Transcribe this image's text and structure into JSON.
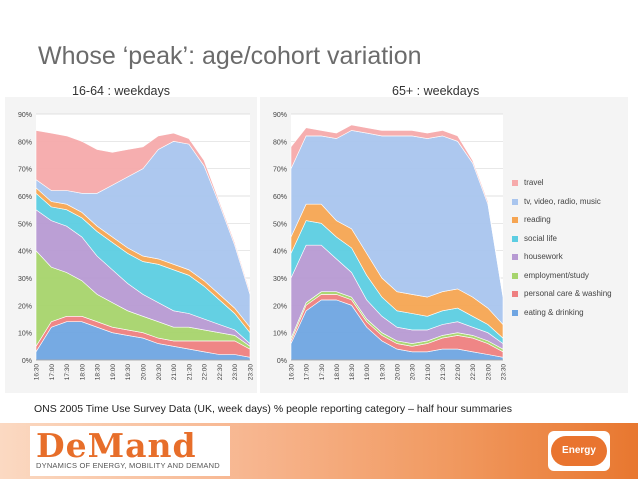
{
  "slide": {
    "title": "Whose ‘peak’: age/cohort variation",
    "footnote": "ONS 2005 Time Use Survey Data (UK, week days) % people reporting category – half hour summaries",
    "logo": {
      "word": "DeMand",
      "tagline": "DYNAMICS OF ENERGY, MOBILITY AND DEMAND"
    },
    "badge": {
      "text": "Energy"
    }
  },
  "colors": {
    "travel": "#f6aaab",
    "tv": "#a9c5ee",
    "reading": "#f6a552",
    "social": "#5ccde2",
    "housework": "#b79ad3",
    "employment": "#a6d46c",
    "personal": "#ee7f80",
    "eating": "#6fa5e2"
  },
  "chart_data": [
    {
      "type": "area",
      "title": "16-64 : weekdays",
      "x": [
        "16:30",
        "17:00",
        "17:30",
        "18:00",
        "18:30",
        "19:00",
        "19:30",
        "20:00",
        "20:30",
        "21:00",
        "21:30",
        "22:00",
        "22:30",
        "23:00",
        "23:30"
      ],
      "ylim": [
        0,
        90
      ],
      "yticks": [
        "0%",
        "10%",
        "20%",
        "30%",
        "40%",
        "50%",
        "60%",
        "70%",
        "80%",
        "90%"
      ],
      "stacked": true,
      "series": [
        {
          "name": "eating & drinking",
          "color_key": "eating",
          "values": [
            3,
            12,
            14,
            14,
            12,
            10,
            9,
            8,
            6,
            5,
            4,
            3,
            2,
            2,
            1
          ]
        },
        {
          "name": "personal care & washing",
          "color_key": "personal",
          "values": [
            2,
            2,
            2,
            2,
            2,
            2,
            2,
            2,
            2,
            2,
            3,
            4,
            5,
            5,
            3
          ]
        },
        {
          "name": "employment/study",
          "color_key": "employment",
          "values": [
            35,
            20,
            16,
            13,
            10,
            9,
            7,
            6,
            6,
            5,
            5,
            4,
            3,
            2,
            1
          ]
        },
        {
          "name": "housework",
          "color_key": "housework",
          "values": [
            15,
            17,
            17,
            16,
            14,
            12,
            10,
            8,
            7,
            6,
            5,
            4,
            3,
            2,
            1
          ]
        },
        {
          "name": "social life",
          "color_key": "social",
          "values": [
            6,
            5,
            6,
            7,
            9,
            10,
            11,
            12,
            14,
            15,
            14,
            12,
            9,
            6,
            4
          ]
        },
        {
          "name": "reading",
          "color_key": "reading",
          "values": [
            2,
            2,
            2,
            2,
            2,
            2,
            2,
            2,
            2,
            2,
            2,
            2,
            2,
            2,
            2
          ]
        },
        {
          "name": "tv, video, radio, music",
          "color_key": "tv",
          "values": [
            3,
            4,
            5,
            7,
            12,
            19,
            26,
            32,
            40,
            45,
            46,
            42,
            33,
            23,
            12
          ]
        },
        {
          "name": "travel",
          "color_key": "travel",
          "values": [
            18,
            21,
            20,
            19,
            16,
            12,
            10,
            8,
            5,
            3,
            2,
            2,
            1,
            1,
            1
          ]
        }
      ]
    },
    {
      "type": "area",
      "title": "65+ : weekdays",
      "x": [
        "16:30",
        "17:00",
        "17:30",
        "18:00",
        "18:30",
        "19:00",
        "19:30",
        "20:00",
        "20:30",
        "21:00",
        "21:30",
        "22:00",
        "22:30",
        "23:00",
        "23:30"
      ],
      "ylim": [
        0,
        90
      ],
      "yticks": [
        "0%",
        "10%",
        "20%",
        "30%",
        "40%",
        "50%",
        "60%",
        "70%",
        "80%",
        "90%"
      ],
      "stacked": true,
      "series": [
        {
          "name": "eating & drinking",
          "color_key": "eating",
          "values": [
            6,
            18,
            22,
            22,
            20,
            12,
            7,
            4,
            3,
            3,
            4,
            4,
            3,
            2,
            1
          ]
        },
        {
          "name": "personal care & washing",
          "color_key": "personal",
          "values": [
            1,
            2,
            2,
            2,
            2,
            2,
            2,
            2,
            2,
            3,
            4,
            5,
            5,
            4,
            2
          ]
        },
        {
          "name": "employment/study",
          "color_key": "employment",
          "values": [
            1,
            1,
            1,
            1,
            1,
            1,
            1,
            1,
            1,
            1,
            1,
            1,
            1,
            1,
            1
          ]
        },
        {
          "name": "housework",
          "color_key": "housework",
          "values": [
            22,
            21,
            17,
            12,
            9,
            7,
            6,
            5,
            5,
            4,
            4,
            4,
            3,
            3,
            2
          ]
        },
        {
          "name": "social life",
          "color_key": "social",
          "values": [
            9,
            9,
            8,
            8,
            9,
            9,
            7,
            6,
            6,
            5,
            5,
            5,
            4,
            3,
            2
          ]
        },
        {
          "name": "reading",
          "color_key": "reading",
          "values": [
            6,
            6,
            7,
            6,
            7,
            8,
            7,
            7,
            7,
            7,
            7,
            7,
            7,
            6,
            5
          ]
        },
        {
          "name": "tv, video, radio, music",
          "color_key": "tv",
          "values": [
            25,
            25,
            25,
            30,
            36,
            44,
            52,
            57,
            58,
            58,
            57,
            54,
            49,
            38,
            10
          ]
        },
        {
          "name": "travel",
          "color_key": "travel",
          "values": [
            8,
            3,
            2,
            2,
            2,
            2,
            2,
            2,
            2,
            2,
            2,
            2,
            1,
            1,
            1
          ]
        }
      ]
    }
  ],
  "legend": [
    {
      "label": "travel",
      "color_key": "travel"
    },
    {
      "label": "tv, video, radio, music",
      "color_key": "tv"
    },
    {
      "label": "reading",
      "color_key": "reading"
    },
    {
      "label": "social life",
      "color_key": "social"
    },
    {
      "label": "housework",
      "color_key": "housework"
    },
    {
      "label": "employment/study",
      "color_key": "employment"
    },
    {
      "label": "personal care & washing",
      "color_key": "personal"
    },
    {
      "label": "eating & drinking",
      "color_key": "eating"
    }
  ]
}
